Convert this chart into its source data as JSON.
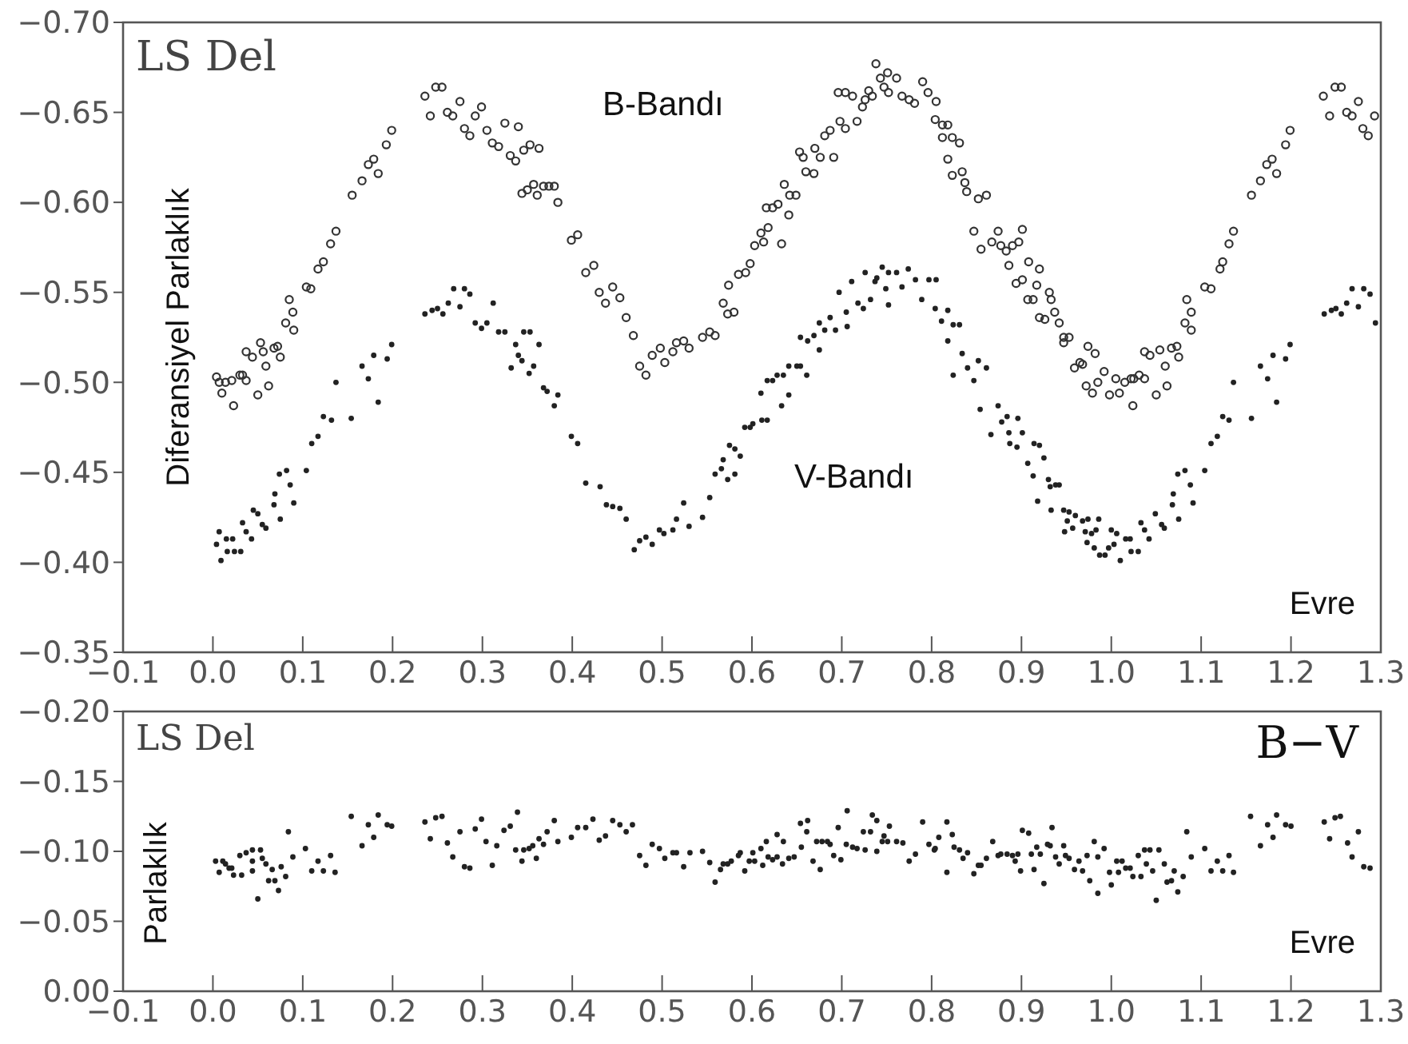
{
  "chart_data": [
    {
      "type": "scatter",
      "title": "LS Del",
      "xlabel": "Evre",
      "ylabel": "Diferansiyel Parlaklık",
      "xlim": [
        -0.1,
        1.3
      ],
      "ylim": [
        -0.35,
        -0.7
      ],
      "xticks": [
        {
          "value": -0.1,
          "label": "−0.1"
        },
        {
          "value": 0,
          "label": "0.0"
        },
        {
          "value": 0.1,
          "label": "0.1"
        },
        {
          "value": 0.2,
          "label": "0.2"
        },
        {
          "value": 0.3,
          "label": "0.3"
        },
        {
          "value": 0.4,
          "label": "0.4"
        },
        {
          "value": 0.5,
          "label": "0.5"
        },
        {
          "value": 0.6,
          "label": "0.6"
        },
        {
          "value": 0.7,
          "label": "0.7"
        },
        {
          "value": 0.8,
          "label": "0.8"
        },
        {
          "value": 0.9,
          "label": "0.9"
        },
        {
          "value": 1.0,
          "label": "1.0"
        },
        {
          "value": 1.1,
          "label": "1.1"
        },
        {
          "value": 1.2,
          "label": "1.2"
        },
        {
          "value": 1.3,
          "label": "1.3"
        }
      ],
      "yticks": [
        {
          "value": -0.35,
          "label": "−0.35"
        },
        {
          "value": -0.4,
          "label": "−0.40"
        },
        {
          "value": -0.45,
          "label": "−0.45"
        },
        {
          "value": -0.5,
          "label": "−0.50"
        },
        {
          "value": -0.55,
          "label": "−0.55"
        },
        {
          "value": -0.6,
          "label": "−0.60"
        },
        {
          "value": -0.65,
          "label": "−0.65"
        },
        {
          "value": -0.7,
          "label": "−0.70"
        }
      ],
      "series": [
        {
          "name": "B-Bandı",
          "color": "#333333",
          "marker": "circle",
          "x": [
            0.004,
            0.007,
            0.01,
            0.014,
            0.021,
            0.023,
            0.03,
            0.033,
            0.037,
            0.037,
            0.044,
            0.05,
            0.053,
            0.056,
            0.059,
            0.062,
            0.068,
            0.072,
            0.075,
            0.081,
            0.085,
            0.089,
            0.09,
            0.104,
            0.109,
            0.117,
            0.123,
            0.131,
            0.137,
            0.155,
            0.166,
            0.173,
            0.179,
            0.184,
            0.193,
            0.199,
            0.236,
            0.242,
            0.248,
            0.255,
            0.261,
            0.267,
            0.275,
            0.28,
            0.286,
            0.292,
            0.299,
            0.305,
            0.311,
            0.318,
            0.325,
            0.331,
            0.337,
            0.34,
            0.346,
            0.353,
            0.363,
            0.344,
            0.35,
            0.357,
            0.361,
            0.368,
            0.374,
            0.38,
            0.384,
            0.399,
            0.406,
            0.415,
            0.424,
            0.43,
            0.437,
            0.445,
            0.453,
            0.46,
            0.468,
            0.475,
            0.482,
            0.489,
            0.498,
            0.503,
            0.512,
            0.516,
            0.524,
            0.53,
            0.545,
            0.553,
            0.559,
            0.568,
            0.573,
            0.58,
            0.574,
            0.585,
            0.593,
            0.598,
            0.603,
            0.61,
            0.613,
            0.618,
            0.616,
            0.623,
            0.629,
            0.633,
            0.636,
            0.641,
            0.642,
            0.649,
            0.653,
            0.657,
            0.66,
            0.669,
            0.67,
            0.676,
            0.681,
            0.687,
            0.691,
            0.698,
            0.704,
            0.696,
            0.704,
            0.712,
            0.717,
            0.723,
            0.726,
            0.73,
            0.734,
            0.738,
            0.743,
            0.747,
            0.751,
            0.752,
            0.761,
            0.767,
            0.775,
            0.781,
            0.79,
            0.796,
            0.805,
            0.804,
            0.812,
            0.818,
            0.812,
            0.823,
            0.831,
            0.818,
            0.823,
            0.834,
            0.837,
            0.839,
            0.852,
            0.861,
            0.847,
            0.855,
            0.867,
            0.874,
            0.877,
            0.883,
            0.89,
            0.897,
            0.901,
            0.886,
            0.894,
            0.901,
            0.908,
            0.92,
            0.907,
            0.913,
            0.917,
            0.931,
            0.933,
            0.92,
            0.926,
            0.937,
            0.942,
            0.947,
            0.953,
            0.947,
            0.959,
            0.965,
            0.968,
            0.974,
            0.982,
            0.972,
            0.979,
            0.985,
            0.992,
            0.998,
            1.005,
            1.009,
            1.015,
            1.022,
            1.025,
            1.031,
            1.037,
            1.024,
            1.037,
            1.043,
            1.054,
            1.05,
            1.06,
            1.062,
            1.067,
            1.073,
            1.075,
            1.082,
            1.089,
            1.084,
            1.089,
            1.104,
            1.111,
            1.121,
            1.124,
            1.131,
            1.136,
            1.156,
            1.166,
            1.173,
            1.179,
            1.184,
            1.194,
            1.199,
            1.236,
            1.243,
            1.249,
            1.256,
            1.262,
            1.268,
            1.275,
            1.28,
            1.286,
            1.293
          ],
          "values": [
            -0.503,
            -0.5,
            -0.494,
            -0.5,
            -0.501,
            -0.487,
            -0.504,
            -0.504,
            -0.501,
            -0.517,
            -0.514,
            -0.493,
            -0.522,
            -0.517,
            -0.509,
            -0.498,
            -0.519,
            -0.52,
            -0.514,
            -0.533,
            -0.546,
            -0.539,
            -0.529,
            -0.553,
            -0.552,
            -0.563,
            -0.567,
            -0.577,
            -0.584,
            -0.604,
            -0.612,
            -0.621,
            -0.624,
            -0.616,
            -0.632,
            -0.64,
            -0.659,
            -0.648,
            -0.664,
            -0.664,
            -0.65,
            -0.648,
            -0.656,
            -0.641,
            -0.637,
            -0.648,
            -0.653,
            -0.64,
            -0.633,
            -0.631,
            -0.644,
            -0.626,
            -0.623,
            -0.642,
            -0.629,
            -0.632,
            -0.63,
            -0.605,
            -0.607,
            -0.61,
            -0.604,
            -0.609,
            -0.609,
            -0.609,
            -0.6,
            -0.579,
            -0.582,
            -0.561,
            -0.565,
            -0.55,
            -0.544,
            -0.553,
            -0.547,
            -0.536,
            -0.526,
            -0.509,
            -0.504,
            -0.515,
            -0.519,
            -0.511,
            -0.517,
            -0.522,
            -0.523,
            -0.519,
            -0.525,
            -0.528,
            -0.526,
            -0.544,
            -0.538,
            -0.539,
            -0.554,
            -0.56,
            -0.561,
            -0.566,
            -0.576,
            -0.583,
            -0.578,
            -0.586,
            -0.597,
            -0.597,
            -0.599,
            -0.577,
            -0.61,
            -0.593,
            -0.604,
            -0.604,
            -0.628,
            -0.625,
            -0.617,
            -0.616,
            -0.63,
            -0.625,
            -0.637,
            -0.64,
            -0.625,
            -0.645,
            -0.641,
            -0.661,
            -0.661,
            -0.659,
            -0.645,
            -0.653,
            -0.657,
            -0.662,
            -0.659,
            -0.677,
            -0.669,
            -0.664,
            -0.672,
            -0.661,
            -0.669,
            -0.659,
            -0.657,
            -0.655,
            -0.667,
            -0.661,
            -0.656,
            -0.646,
            -0.643,
            -0.643,
            -0.636,
            -0.636,
            -0.633,
            -0.624,
            -0.615,
            -0.617,
            -0.611,
            -0.606,
            -0.602,
            -0.604,
            -0.584,
            -0.574,
            -0.578,
            -0.584,
            -0.576,
            -0.573,
            -0.576,
            -0.578,
            -0.585,
            -0.565,
            -0.555,
            -0.557,
            -0.567,
            -0.563,
            -0.546,
            -0.546,
            -0.554,
            -0.55,
            -0.546,
            -0.536,
            -0.535,
            -0.539,
            -0.533,
            -0.525,
            -0.525,
            -0.522,
            -0.508,
            -0.511,
            -0.51,
            -0.52,
            -0.516,
            -0.498,
            -0.494,
            -0.5,
            -0.506,
            -0.493,
            -0.502,
            -0.494,
            -0.5,
            -0.502,
            -0.502,
            -0.504,
            -0.502,
            -0.487,
            -0.517,
            -0.515,
            -0.518,
            -0.493,
            -0.509,
            -0.498,
            -0.519,
            -0.52,
            -0.514,
            -0.533,
            -0.529,
            -0.546,
            -0.539,
            -0.553,
            -0.552,
            -0.563,
            -0.567,
            -0.577,
            -0.584,
            -0.604,
            -0.612,
            -0.621,
            -0.624,
            -0.616,
            -0.632,
            -0.64,
            -0.659,
            -0.648,
            -0.664,
            -0.664,
            -0.65,
            -0.648,
            -0.656,
            -0.641,
            -0.637,
            -0.648
          ]
        },
        {
          "name": "V-Bandı",
          "color": "#222222",
          "marker": "circle",
          "x": [
            0.004,
            0.007,
            0.009,
            0.015,
            0.016,
            0.022,
            0.024,
            0.031,
            0.033,
            0.037,
            0.043,
            0.045,
            0.05,
            0.055,
            0.059,
            0.068,
            0.069,
            0.075,
            0.074,
            0.082,
            0.086,
            0.09,
            0.104,
            0.11,
            0.117,
            0.123,
            0.132,
            0.137,
            0.154,
            0.166,
            0.173,
            0.179,
            0.184,
            0.194,
            0.199,
            0.236,
            0.244,
            0.25,
            0.256,
            0.262,
            0.268,
            0.275,
            0.28,
            0.286,
            0.292,
            0.299,
            0.305,
            0.312,
            0.318,
            0.325,
            0.332,
            0.337,
            0.34,
            0.346,
            0.353,
            0.344,
            0.352,
            0.357,
            0.363,
            0.368,
            0.372,
            0.38,
            0.384,
            0.399,
            0.406,
            0.415,
            0.431,
            0.438,
            0.445,
            0.453,
            0.46,
            0.469,
            0.475,
            0.482,
            0.489,
            0.497,
            0.502,
            0.512,
            0.516,
            0.524,
            0.53,
            0.545,
            0.553,
            0.559,
            0.566,
            0.568,
            0.575,
            0.573,
            0.581,
            0.587,
            0.581,
            0.592,
            0.598,
            0.601,
            0.611,
            0.617,
            0.61,
            0.617,
            0.623,
            0.628,
            0.635,
            0.633,
            0.641,
            0.641,
            0.65,
            0.654,
            0.661,
            0.654,
            0.662,
            0.669,
            0.675,
            0.675,
            0.681,
            0.687,
            0.693,
            0.697,
            0.705,
            0.706,
            0.711,
            0.718,
            0.724,
            0.726,
            0.732,
            0.737,
            0.739,
            0.745,
            0.749,
            0.752,
            0.752,
            0.761,
            0.767,
            0.774,
            0.782,
            0.789,
            0.797,
            0.805,
            0.804,
            0.811,
            0.818,
            0.824,
            0.831,
            0.818,
            0.824,
            0.834,
            0.84,
            0.847,
            0.852,
            0.861,
            0.854,
            0.866,
            0.874,
            0.878,
            0.884,
            0.886,
            0.896,
            0.887,
            0.895,
            0.901,
            0.914,
            0.92,
            0.907,
            0.913,
            0.925,
            0.93,
            0.932,
            0.938,
            0.942,
            0.918,
            0.933,
            0.947,
            0.953,
            0.951,
            0.96,
            0.968,
            0.974,
            0.986,
            0.948,
            0.957,
            0.971,
            0.978,
            0.983,
            0.973,
            0.981,
            0.987,
            0.993,
            0.997,
            1.0,
            1.006,
            1.003,
            1.01,
            1.016,
            1.022,
            1.021,
            1.03,
            1.033,
            1.037,
            1.042,
            1.049,
            1.056,
            1.059,
            1.068,
            1.069,
            1.075,
            1.074,
            1.082,
            1.088,
            1.091,
            1.104,
            1.111,
            1.118,
            1.124,
            1.131,
            1.136,
            1.156,
            1.166,
            1.174,
            1.18,
            1.184,
            1.194,
            1.199,
            1.237,
            1.245,
            1.25,
            1.256,
            1.262,
            1.268,
            1.275,
            1.281,
            1.288,
            1.294
          ],
          "values": [
            -0.41,
            -0.417,
            -0.401,
            -0.413,
            -0.406,
            -0.413,
            -0.406,
            -0.406,
            -0.422,
            -0.417,
            -0.413,
            -0.429,
            -0.427,
            -0.421,
            -0.419,
            -0.432,
            -0.438,
            -0.424,
            -0.449,
            -0.451,
            -0.443,
            -0.433,
            -0.451,
            -0.466,
            -0.47,
            -0.481,
            -0.479,
            -0.5,
            -0.48,
            -0.509,
            -0.502,
            -0.515,
            -0.489,
            -0.513,
            -0.521,
            -0.538,
            -0.54,
            -0.541,
            -0.538,
            -0.544,
            -0.552,
            -0.542,
            -0.552,
            -0.549,
            -0.533,
            -0.53,
            -0.533,
            -0.544,
            -0.528,
            -0.528,
            -0.508,
            -0.521,
            -0.515,
            -0.528,
            -0.528,
            -0.512,
            -0.505,
            -0.509,
            -0.521,
            -0.497,
            -0.495,
            -0.487,
            -0.493,
            -0.47,
            -0.466,
            -0.444,
            -0.442,
            -0.432,
            -0.431,
            -0.43,
            -0.424,
            -0.407,
            -0.412,
            -0.414,
            -0.41,
            -0.418,
            -0.416,
            -0.418,
            -0.424,
            -0.433,
            -0.42,
            -0.425,
            -0.436,
            -0.449,
            -0.452,
            -0.457,
            -0.465,
            -0.446,
            -0.449,
            -0.459,
            -0.463,
            -0.475,
            -0.475,
            -0.477,
            -0.479,
            -0.479,
            -0.494,
            -0.501,
            -0.501,
            -0.504,
            -0.504,
            -0.487,
            -0.493,
            -0.509,
            -0.509,
            -0.509,
            -0.504,
            -0.525,
            -0.523,
            -0.526,
            -0.518,
            -0.533,
            -0.529,
            -0.536,
            -0.529,
            -0.55,
            -0.539,
            -0.531,
            -0.556,
            -0.544,
            -0.541,
            -0.561,
            -0.546,
            -0.556,
            -0.558,
            -0.564,
            -0.552,
            -0.561,
            -0.543,
            -0.561,
            -0.553,
            -0.563,
            -0.557,
            -0.546,
            -0.557,
            -0.557,
            -0.541,
            -0.534,
            -0.54,
            -0.532,
            -0.532,
            -0.523,
            -0.504,
            -0.516,
            -0.508,
            -0.501,
            -0.512,
            -0.508,
            -0.485,
            -0.471,
            -0.487,
            -0.478,
            -0.481,
            -0.472,
            -0.48,
            -0.466,
            -0.464,
            -0.472,
            -0.466,
            -0.465,
            -0.455,
            -0.448,
            -0.458,
            -0.446,
            -0.442,
            -0.443,
            -0.443,
            -0.434,
            -0.429,
            -0.429,
            -0.428,
            -0.423,
            -0.426,
            -0.423,
            -0.424,
            -0.424,
            -0.417,
            -0.419,
            -0.417,
            -0.416,
            -0.418,
            -0.411,
            -0.408,
            -0.404,
            -0.404,
            -0.408,
            -0.418,
            -0.416,
            -0.41,
            -0.401,
            -0.413,
            -0.406,
            -0.413,
            -0.406,
            -0.422,
            -0.418,
            -0.413,
            -0.427,
            -0.421,
            -0.419,
            -0.432,
            -0.438,
            -0.424,
            -0.449,
            -0.451,
            -0.443,
            -0.433,
            -0.451,
            -0.466,
            -0.47,
            -0.481,
            -0.479,
            -0.5,
            -0.48,
            -0.509,
            -0.502,
            -0.515,
            -0.489,
            -0.513,
            -0.521,
            -0.538,
            -0.54,
            -0.541,
            -0.538,
            -0.544,
            -0.552,
            -0.542,
            -0.552,
            -0.549,
            -0.533
          ]
        }
      ]
    },
    {
      "type": "scatter",
      "title": "LS Del",
      "xlabel": "Evre",
      "ylabel": "Parlaklık",
      "xlim": [
        -0.1,
        1.3
      ],
      "ylim": [
        0.0,
        -0.2
      ],
      "xticks": [
        {
          "value": -0.1,
          "label": "−0.1"
        },
        {
          "value": 0,
          "label": "0.0"
        },
        {
          "value": 0.1,
          "label": "0.1"
        },
        {
          "value": 0.2,
          "label": "0.2"
        },
        {
          "value": 0.3,
          "label": "0.3"
        },
        {
          "value": 0.4,
          "label": "0.4"
        },
        {
          "value": 0.5,
          "label": "0.5"
        },
        {
          "value": 0.6,
          "label": "0.6"
        },
        {
          "value": 0.7,
          "label": "0.7"
        },
        {
          "value": 0.8,
          "label": "0.8"
        },
        {
          "value": 0.9,
          "label": "0.9"
        },
        {
          "value": 1.0,
          "label": "1.0"
        },
        {
          "value": 1.1,
          "label": "1.1"
        },
        {
          "value": 1.2,
          "label": "1.2"
        },
        {
          "value": 1.3,
          "label": "1.3"
        }
      ],
      "yticks": [
        {
          "value": 0,
          "label": "0.00"
        },
        {
          "value": -0.05,
          "label": "−0.05"
        },
        {
          "value": -0.1,
          "label": "−0.10"
        },
        {
          "value": -0.15,
          "label": "−0.15"
        },
        {
          "value": -0.2,
          "label": "−0.20"
        }
      ],
      "series": [
        {
          "name": "B−V",
          "color": "#222222",
          "marker": "circle",
          "x": [
            0.003,
            0.007,
            0.011,
            0.014,
            0.018,
            0.023,
            0.021,
            0.03,
            0.032,
            0.037,
            0.044,
            0.044,
            0.044,
            0.05,
            0.053,
            0.055,
            0.059,
            0.062,
            0.066,
            0.069,
            0.073,
            0.076,
            0.081,
            0.084,
            0.089,
            0.103,
            0.11,
            0.117,
            0.123,
            0.131,
            0.136,
            0.154,
            0.166,
            0.173,
            0.179,
            0.184,
            0.194,
            0.199,
            0.236,
            0.242,
            0.248,
            0.255,
            0.261,
            0.267,
            0.275,
            0.28,
            0.286,
            0.292,
            0.299,
            0.304,
            0.311,
            0.316,
            0.324,
            0.331,
            0.339,
            0.337,
            0.344,
            0.346,
            0.352,
            0.356,
            0.36,
            0.363,
            0.368,
            0.372,
            0.38,
            0.384,
            0.399,
            0.406,
            0.415,
            0.423,
            0.43,
            0.437,
            0.445,
            0.453,
            0.46,
            0.467,
            0.475,
            0.482,
            0.489,
            0.497,
            0.503,
            0.512,
            0.516,
            0.524,
            0.531,
            0.545,
            0.553,
            0.559,
            0.565,
            0.568,
            0.573,
            0.577,
            0.585,
            0.587,
            0.592,
            0.597,
            0.601,
            0.603,
            0.61,
            0.612,
            0.616,
            0.618,
            0.623,
            0.628,
            0.628,
            0.634,
            0.635,
            0.641,
            0.647,
            0.655,
            0.654,
            0.662,
            0.661,
            0.668,
            0.672,
            0.676,
            0.678,
            0.684,
            0.687,
            0.691,
            0.696,
            0.699,
            0.705,
            0.706,
            0.712,
            0.717,
            0.724,
            0.726,
            0.732,
            0.734,
            0.739,
            0.739,
            0.745,
            0.747,
            0.753,
            0.751,
            0.761,
            0.768,
            0.775,
            0.782,
            0.79,
            0.797,
            0.803,
            0.808,
            0.804,
            0.817,
            0.817,
            0.823,
            0.825,
            0.831,
            0.835,
            0.84,
            0.847,
            0.852,
            0.855,
            0.861,
            0.868,
            0.874,
            0.877,
            0.884,
            0.89,
            0.893,
            0.896,
            0.899,
            0.901,
            0.908,
            0.911,
            0.914,
            0.917,
            0.925,
            0.921,
            0.929,
            0.934,
            0.932,
            0.938,
            0.942,
            0.947,
            0.949,
            0.953,
            0.959,
            0.964,
            0.968,
            0.973,
            0.976,
            0.981,
            0.985,
            0.985,
            0.992,
            0.998,
            1.0,
            1.006,
            1.008,
            1.012,
            1.016,
            1.021,
            1.024,
            1.03,
            1.033,
            1.037,
            1.039,
            1.043,
            1.046,
            1.05,
            1.053,
            1.059,
            1.062,
            1.067,
            1.07,
            1.074,
            1.08,
            1.084,
            1.089,
            1.104,
            1.111,
            1.118,
            1.124,
            1.131,
            1.136,
            1.155,
            1.166,
            1.174,
            1.18,
            1.184,
            1.194,
            1.2,
            1.237,
            1.243,
            1.249,
            1.255,
            1.263,
            1.268,
            1.275,
            1.281,
            1.288
          ],
          "values": [
            -0.093,
            -0.085,
            -0.093,
            -0.091,
            -0.088,
            -0.083,
            -0.088,
            -0.097,
            -0.083,
            -0.099,
            -0.101,
            -0.093,
            -0.086,
            -0.066,
            -0.101,
            -0.095,
            -0.091,
            -0.079,
            -0.087,
            -0.079,
            -0.072,
            -0.089,
            -0.082,
            -0.114,
            -0.096,
            -0.102,
            -0.086,
            -0.093,
            -0.086,
            -0.097,
            -0.085,
            -0.125,
            -0.104,
            -0.119,
            -0.11,
            -0.126,
            -0.119,
            -0.118,
            -0.121,
            -0.109,
            -0.124,
            -0.125,
            -0.106,
            -0.096,
            -0.114,
            -0.089,
            -0.088,
            -0.116,
            -0.123,
            -0.107,
            -0.09,
            -0.104,
            -0.115,
            -0.118,
            -0.128,
            -0.101,
            -0.093,
            -0.101,
            -0.102,
            -0.104,
            -0.095,
            -0.109,
            -0.105,
            -0.114,
            -0.122,
            -0.107,
            -0.11,
            -0.117,
            -0.117,
            -0.123,
            -0.108,
            -0.111,
            -0.122,
            -0.119,
            -0.114,
            -0.119,
            -0.097,
            -0.09,
            -0.105,
            -0.102,
            -0.095,
            -0.099,
            -0.099,
            -0.089,
            -0.099,
            -0.1,
            -0.092,
            -0.078,
            -0.087,
            -0.091,
            -0.091,
            -0.093,
            -0.097,
            -0.099,
            -0.086,
            -0.093,
            -0.099,
            -0.093,
            -0.102,
            -0.09,
            -0.107,
            -0.096,
            -0.094,
            -0.112,
            -0.096,
            -0.091,
            -0.107,
            -0.095,
            -0.096,
            -0.103,
            -0.12,
            -0.122,
            -0.114,
            -0.093,
            -0.107,
            -0.087,
            -0.107,
            -0.107,
            -0.105,
            -0.097,
            -0.117,
            -0.094,
            -0.105,
            -0.129,
            -0.103,
            -0.102,
            -0.114,
            -0.101,
            -0.114,
            -0.126,
            -0.122,
            -0.1,
            -0.107,
            -0.111,
            -0.118,
            -0.107,
            -0.107,
            -0.106,
            -0.093,
            -0.098,
            -0.121,
            -0.105,
            -0.101,
            -0.11,
            -0.102,
            -0.121,
            -0.085,
            -0.112,
            -0.103,
            -0.101,
            -0.095,
            -0.099,
            -0.084,
            -0.09,
            -0.09,
            -0.095,
            -0.107,
            -0.097,
            -0.098,
            -0.098,
            -0.097,
            -0.093,
            -0.098,
            -0.086,
            -0.115,
            -0.113,
            -0.098,
            -0.087,
            -0.103,
            -0.077,
            -0.098,
            -0.105,
            -0.117,
            -0.104,
            -0.096,
            -0.091,
            -0.104,
            -0.097,
            -0.095,
            -0.087,
            -0.093,
            -0.086,
            -0.097,
            -0.079,
            -0.107,
            -0.07,
            -0.096,
            -0.102,
            -0.085,
            -0.076,
            -0.093,
            -0.085,
            -0.093,
            -0.088,
            -0.088,
            -0.082,
            -0.097,
            -0.082,
            -0.101,
            -0.091,
            -0.101,
            -0.086,
            -0.065,
            -0.101,
            -0.091,
            -0.078,
            -0.079,
            -0.086,
            -0.071,
            -0.082,
            -0.114,
            -0.096,
            -0.102,
            -0.086,
            -0.093,
            -0.086,
            -0.097,
            -0.085,
            -0.125,
            -0.104,
            -0.119,
            -0.11,
            -0.126,
            -0.119,
            -0.118,
            -0.121,
            -0.109,
            -0.124,
            -0.125,
            -0.106,
            -0.096,
            -0.114,
            -0.089,
            -0.088
          ]
        }
      ]
    }
  ]
}
